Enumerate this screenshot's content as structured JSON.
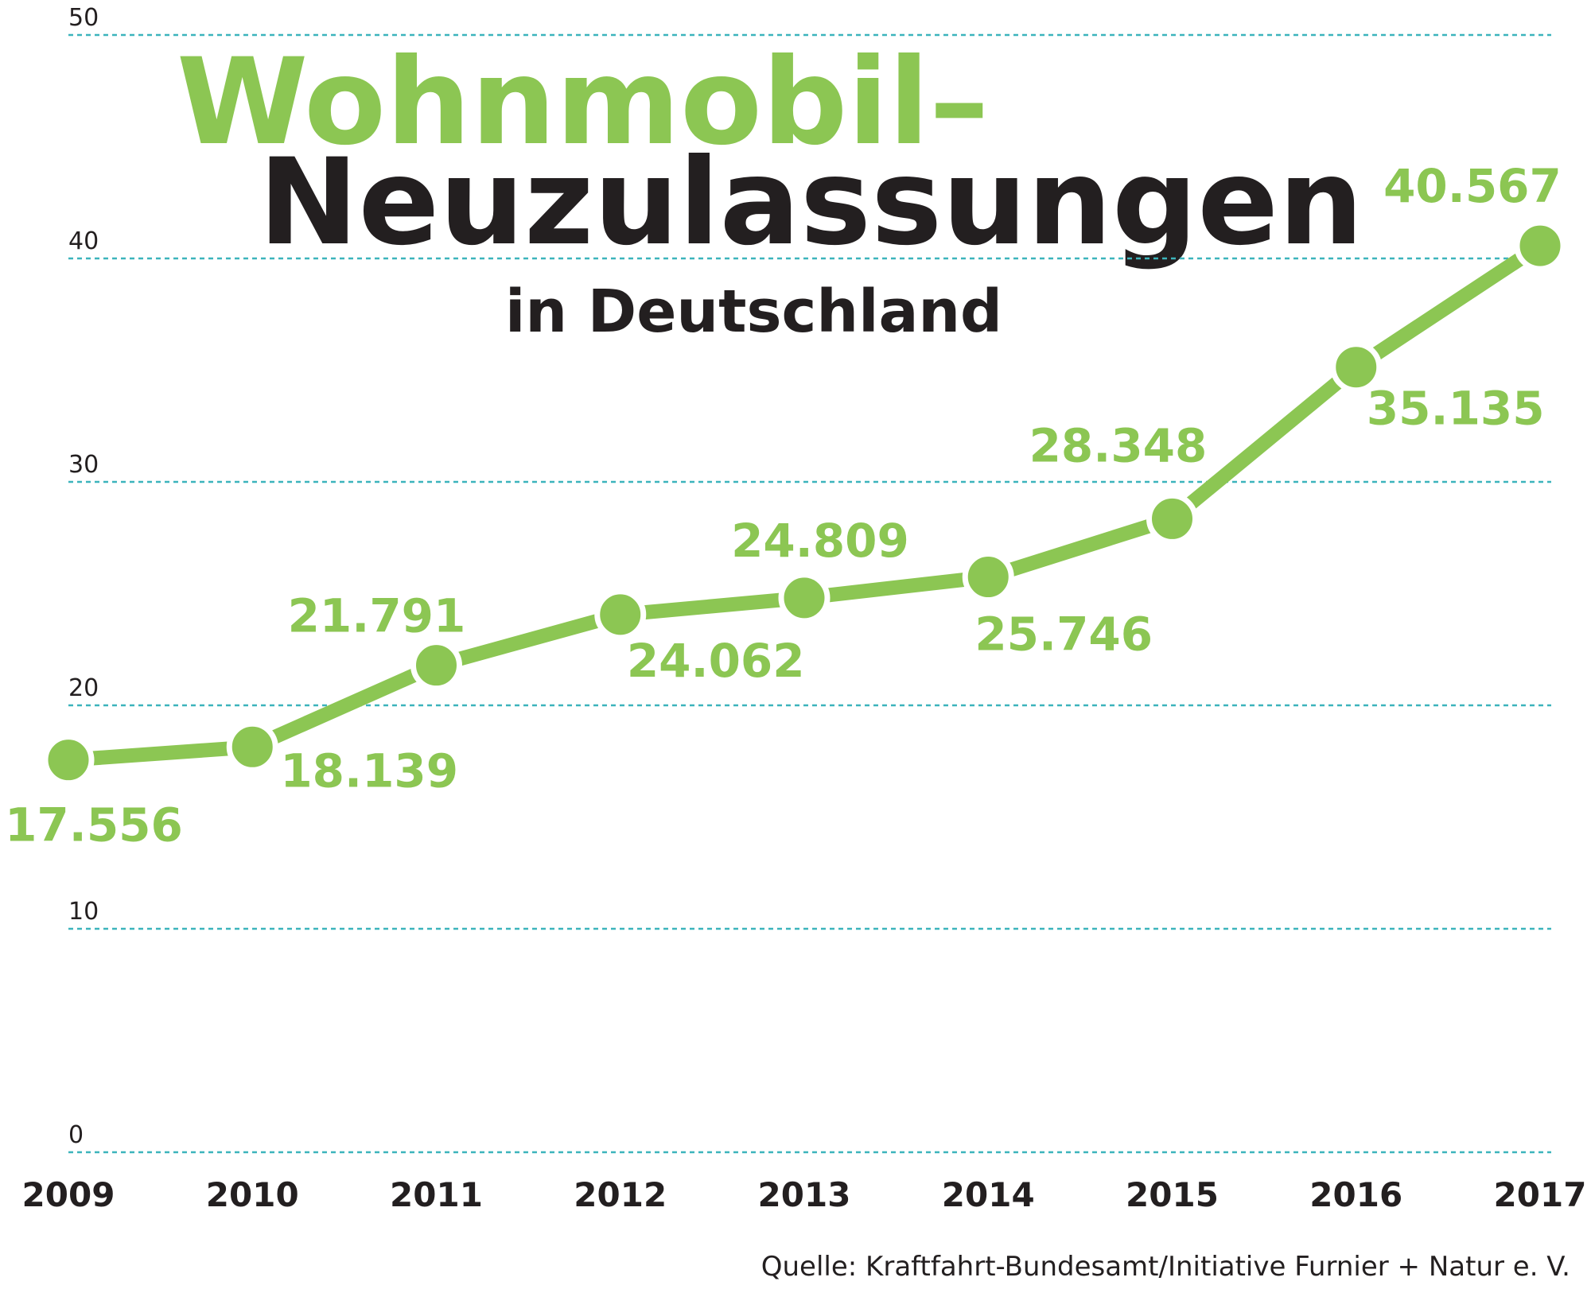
{
  "chart_data": {
    "type": "line",
    "title_lines": [
      "Wohnmobil–",
      "Neuzulassungen"
    ],
    "subtitle": "in Deutschland",
    "source": "Quelle: Kraftfahrt-Bundesamt/Initiative Furnier + Natur e. V.",
    "categories": [
      "2009",
      "2010",
      "2011",
      "2012",
      "2013",
      "2014",
      "2015",
      "2016",
      "2017"
    ],
    "values": [
      17.556,
      18.139,
      21.791,
      24.062,
      24.809,
      25.746,
      28.348,
      35.135,
      40.567
    ],
    "color": "#8cc653",
    "title_colors": [
      "#8cc653",
      "#231f20"
    ],
    "grid_color": "#3cb4bc",
    "ylim": [
      0,
      50
    ],
    "yticks": [
      0,
      10,
      20,
      30,
      40,
      50
    ],
    "grid": true
  }
}
